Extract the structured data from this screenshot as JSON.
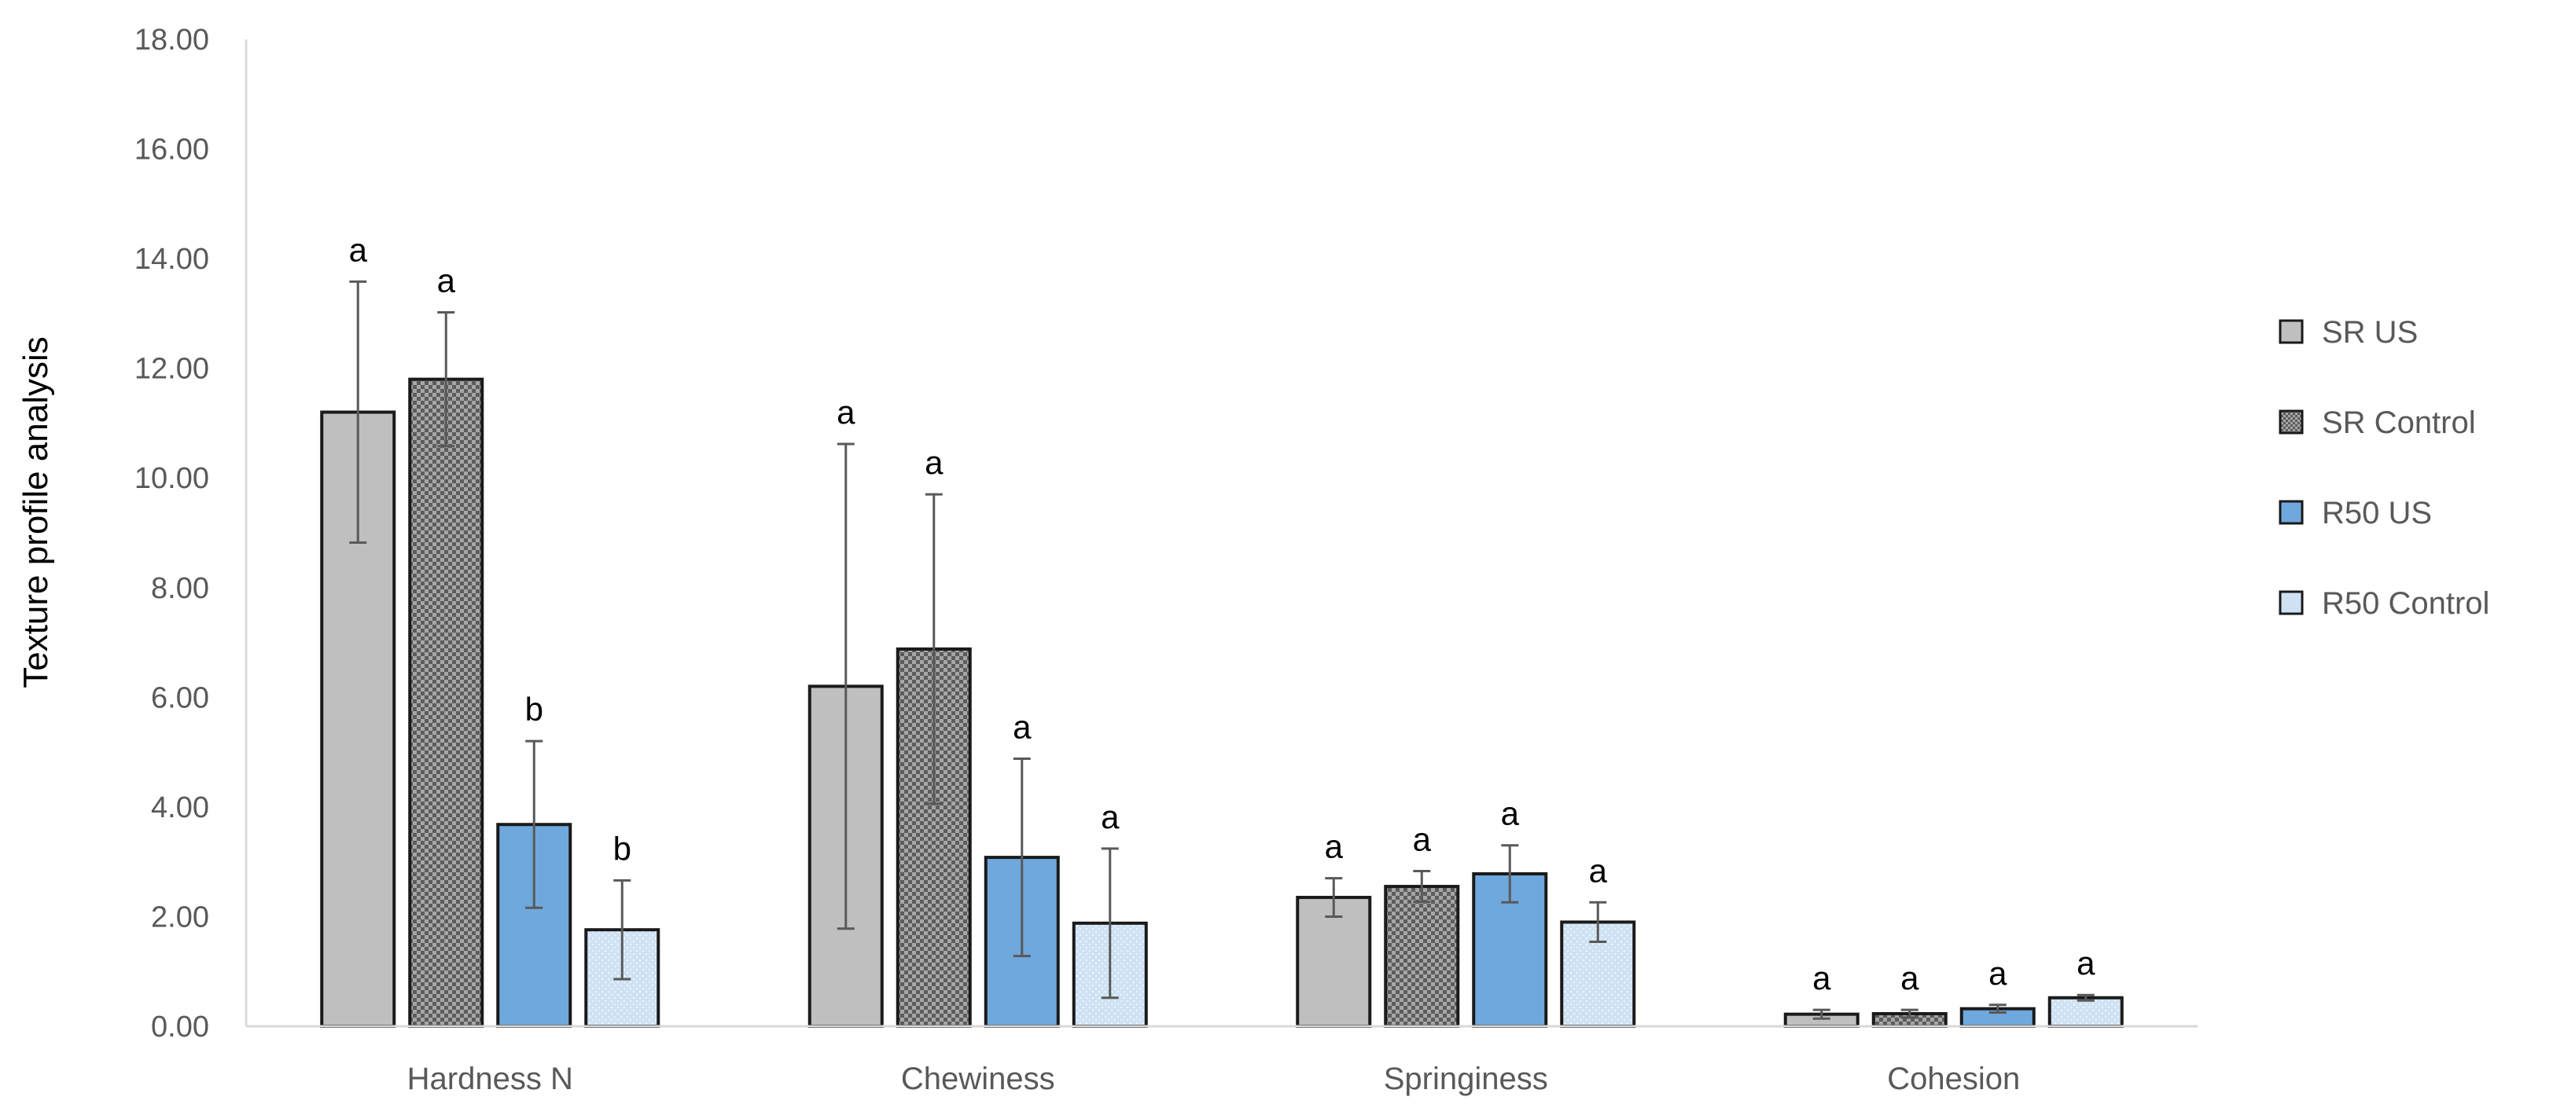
{
  "chart_data": {
    "type": "bar",
    "title": "",
    "xlabel": "",
    "ylabel": "Texture profile analysis",
    "ylim": [
      0,
      18
    ],
    "yticks": [
      "0.00",
      "2.00",
      "4.00",
      "6.00",
      "8.00",
      "10.00",
      "12.00",
      "14.00",
      "16.00",
      "18.00"
    ],
    "grid": false,
    "legend_position": "right",
    "categories": [
      "Hardness N",
      "Chewiness",
      "Springiness",
      "Cohesion"
    ],
    "series": [
      {
        "name": "SR US",
        "color": "#bfbfbf",
        "pattern": "solid",
        "values": [
          11.2,
          6.2,
          2.35,
          0.22
        ],
        "errors": [
          2.38,
          4.42,
          0.35,
          0.08
        ],
        "letters": [
          "a",
          "a",
          "a",
          "a"
        ]
      },
      {
        "name": "SR Control",
        "color": "#7f7f7f",
        "pattern": "checker",
        "values": [
          11.8,
          6.88,
          2.55,
          0.23
        ],
        "errors": [
          1.22,
          2.82,
          0.28,
          0.07
        ],
        "letters": [
          "a",
          "a",
          "a",
          "a"
        ]
      },
      {
        "name": "R50 US",
        "color": "#6fa8dc",
        "pattern": "solid",
        "values": [
          3.68,
          3.08,
          2.78,
          0.32
        ],
        "errors": [
          1.52,
          1.8,
          0.52,
          0.07
        ],
        "letters": [
          "b",
          "a",
          "a",
          "a"
        ]
      },
      {
        "name": "R50 Control",
        "color": "#cfe2f3",
        "pattern": "dots",
        "values": [
          1.76,
          1.88,
          1.9,
          0.52
        ],
        "errors": [
          0.9,
          1.36,
          0.36,
          0.05
        ],
        "letters": [
          "b",
          "a",
          "a",
          "a"
        ]
      }
    ]
  }
}
